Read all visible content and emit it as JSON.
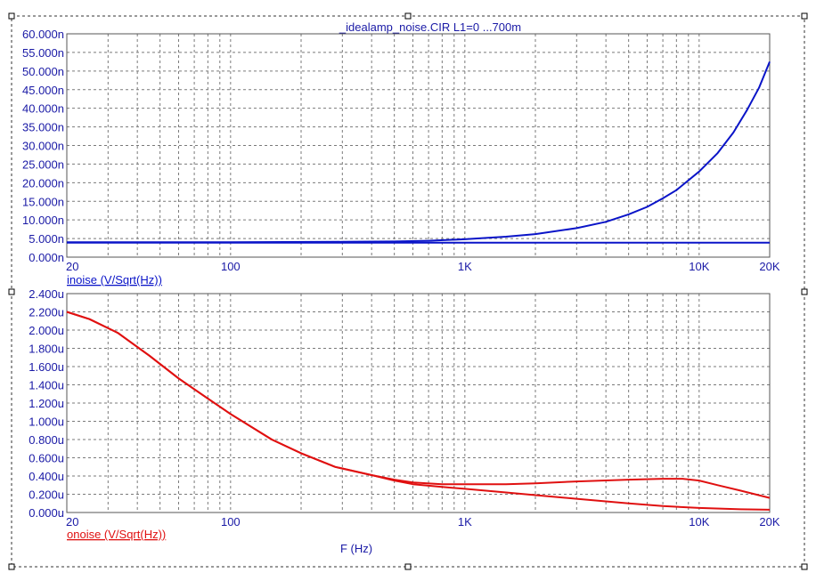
{
  "title": "_idealamp_noise.CIR L1=0 ...700m",
  "xlabel": "F (Hz)",
  "colors": {
    "upper": "#0a14c8",
    "lower": "#e01010",
    "grid": "#7a7a7a",
    "axis_text": "#1a1aa6"
  },
  "chart_data": [
    {
      "type": "line",
      "name": "upper-plot",
      "ylabel": "inoise (V/Sqrt(Hz))",
      "xscale": "log",
      "xlim": [
        20,
        20000
      ],
      "ylim": [
        0,
        60
      ],
      "ytick_values": [
        0,
        5,
        10,
        15,
        20,
        25,
        30,
        35,
        40,
        45,
        50,
        55,
        60
      ],
      "ytick_labels": [
        "0.000n",
        "5.000n",
        "10.000n",
        "15.000n",
        "20.000n",
        "25.000n",
        "30.000n",
        "35.000n",
        "40.000n",
        "45.000n",
        "50.000n",
        "55.000n",
        "60.000n"
      ],
      "xtick_values": [
        20,
        100,
        1000,
        10000,
        20000
      ],
      "xtick_labels": [
        "20",
        "100",
        "1K",
        "10K",
        "20K"
      ],
      "grid": true,
      "series": [
        {
          "x": [
            20,
            100,
            300,
            500,
            700,
            1000,
            1500,
            2000,
            3000,
            4000,
            5000,
            6000,
            7000,
            8000,
            10000,
            12000,
            14000,
            16000,
            18000,
            20000
          ],
          "y": [
            4.0,
            4.0,
            4.1,
            4.2,
            4.4,
            4.8,
            5.5,
            6.2,
            7.8,
            9.5,
            11.5,
            13.5,
            15.8,
            18.0,
            23.0,
            28.0,
            33.5,
            39.5,
            45.5,
            52.5
          ]
        },
        {
          "x": [
            20,
            20000
          ],
          "y": [
            3.9,
            3.9
          ]
        }
      ]
    },
    {
      "type": "line",
      "name": "lower-plot",
      "ylabel": "onoise (V/Sqrt(Hz))",
      "xscale": "log",
      "xlim": [
        20,
        20000
      ],
      "ylim": [
        0,
        2.4
      ],
      "ytick_values": [
        0,
        0.2,
        0.4,
        0.6,
        0.8,
        1.0,
        1.2,
        1.4,
        1.6,
        1.8,
        2.0,
        2.2,
        2.4
      ],
      "ytick_labels": [
        "0.000u",
        "0.200u",
        "0.400u",
        "0.600u",
        "0.800u",
        "1.000u",
        "1.200u",
        "1.400u",
        "1.600u",
        "1.800u",
        "2.000u",
        "2.200u",
        "2.400u"
      ],
      "xtick_values": [
        20,
        100,
        1000,
        10000,
        20000
      ],
      "xtick_labels": [
        "20",
        "100",
        "1K",
        "10K",
        "20K"
      ],
      "grid": true,
      "series": [
        {
          "x": [
            20,
            25,
            33,
            45,
            60,
            80,
            100,
            150,
            200,
            280,
            400,
            500,
            600,
            800,
            1000,
            1500,
            2000,
            3000,
            5000,
            7000,
            8500,
            10000,
            12000,
            15000,
            20000
          ],
          "y": [
            2.2,
            2.12,
            1.97,
            1.72,
            1.47,
            1.25,
            1.08,
            0.8,
            0.65,
            0.5,
            0.41,
            0.36,
            0.33,
            0.31,
            0.31,
            0.31,
            0.32,
            0.34,
            0.36,
            0.37,
            0.37,
            0.35,
            0.3,
            0.24,
            0.16
          ]
        },
        {
          "x": [
            20,
            25,
            33,
            45,
            60,
            80,
            100,
            150,
            200,
            280,
            400,
            500,
            600,
            800,
            1000,
            1500,
            2000,
            3000,
            5000,
            7000,
            10000,
            15000,
            20000
          ],
          "y": [
            2.2,
            2.12,
            1.97,
            1.72,
            1.47,
            1.25,
            1.08,
            0.8,
            0.65,
            0.5,
            0.41,
            0.35,
            0.31,
            0.28,
            0.26,
            0.22,
            0.19,
            0.15,
            0.1,
            0.07,
            0.05,
            0.035,
            0.03
          ]
        }
      ]
    }
  ]
}
